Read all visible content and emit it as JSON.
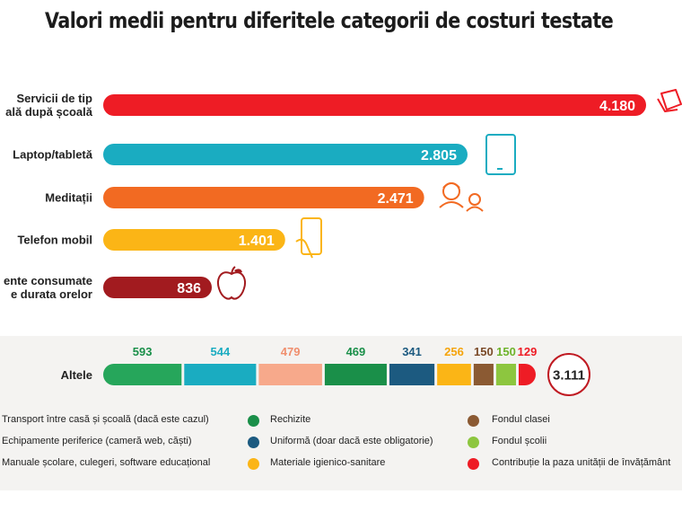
{
  "title": "Valori medii pentru diferitele categorii de costuri testate",
  "chart_data": {
    "type": "bar",
    "bars": [
      {
        "label_lines": [
          "Servicii de tip",
          "ală după școală"
        ],
        "value": 4180,
        "value_label": "4.180",
        "color": "#ee1c25",
        "icon": "note-icon"
      },
      {
        "label_lines": [
          "Laptop/tabletă"
        ],
        "value": 2805,
        "value_label": "2.805",
        "color": "#1aacc1",
        "icon": "tablet-icon"
      },
      {
        "label_lines": [
          "Meditații"
        ],
        "value": 2471,
        "value_label": "2.471",
        "color": "#f26a22",
        "icon": "tutor-icon"
      },
      {
        "label_lines": [
          "Telefon mobil"
        ],
        "value": 1401,
        "value_label": "1.401",
        "color": "#fbb516",
        "icon": "phone-icon"
      },
      {
        "label_lines": [
          "ente consumate",
          "e durata orelor"
        ],
        "value": 836,
        "value_label": "836",
        "color": "#a21b1f",
        "icon": "apple-icon"
      }
    ],
    "stacked": {
      "label": "Altele",
      "total_label": "3.111",
      "segments": [
        {
          "value": 593,
          "label": "593",
          "color": "#26a65b",
          "text_color": "#1a8f49"
        },
        {
          "value": 544,
          "label": "544",
          "color": "#1aacc1",
          "text_color": "#1aacc1"
        },
        {
          "value": 479,
          "label": "479",
          "color": "#f7a98b",
          "text_color": "#f08f6e"
        },
        {
          "value": 469,
          "label": "469",
          "color": "#1a8f49",
          "text_color": "#1a8f49"
        },
        {
          "value": 341,
          "label": "341",
          "color": "#1c5a80",
          "text_color": "#1c5a80"
        },
        {
          "value": 256,
          "label": "256",
          "color": "#fbb516",
          "text_color": "#f5a40c"
        },
        {
          "value": 150,
          "label": "150",
          "color": "#8b5a33",
          "text_color": "#7a4a28"
        },
        {
          "value": 150,
          "label": "150",
          "color": "#8dc63f",
          "text_color": "#6db32a"
        },
        {
          "value": 129,
          "label": "129",
          "color": "#ee1c25",
          "text_color": "#ee1c25"
        }
      ]
    },
    "legend": [
      {
        "label": "Transport între casă și școală (dacă este cazul)",
        "color": null
      },
      {
        "label": "Rechizite",
        "color": "#1a8f49"
      },
      {
        "label": "Fondul clasei",
        "color": "#8b5a33"
      },
      {
        "label": "Echipamente periferice (cameră web, căști)",
        "color": null
      },
      {
        "label": "Uniformă (doar dacă este obligatorie)",
        "color": "#1c5a80"
      },
      {
        "label": "Fondul școlii",
        "color": "#8dc63f"
      },
      {
        "label": "Manuale școlare, culegeri, software educațional",
        "color": null
      },
      {
        "label": "Materiale igienico-sanitare",
        "color": "#fbb516"
      },
      {
        "label": "Contribuție la paza unității de învățământ",
        "color": "#ee1c25"
      }
    ]
  }
}
